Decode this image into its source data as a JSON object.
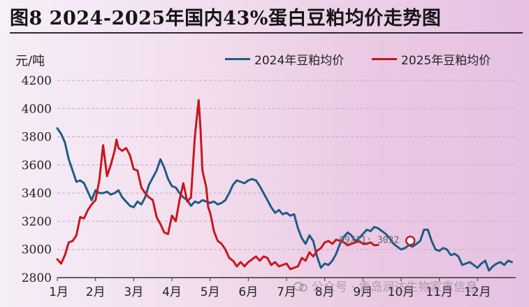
{
  "title": "图8 2024-2025年国内43%蛋白豆粕均价走势图",
  "unit_label": "元/吨",
  "watermark": "公众号 · 青岛润达生物家禽信息",
  "colors": {
    "series_2024": "#1f5b86",
    "series_2025": "#c8161d",
    "grid": "#c9a8c4",
    "axis": "#333333"
  },
  "chart_data": {
    "type": "line",
    "title": "图8 2024-2025年国内43%蛋白豆粕均价走势图",
    "ylabel": "元/吨",
    "xlabel": "",
    "ylim": [
      2800,
      4200
    ],
    "yticks": [
      2800,
      3000,
      3200,
      3400,
      3600,
      3800,
      4000,
      4200
    ],
    "xlim": [
      0,
      12
    ],
    "xticks": [
      "1月",
      "2月",
      "3月",
      "4月",
      "5月",
      "6月",
      "7月",
      "8月",
      "9月",
      "10月",
      "11月",
      "12月"
    ],
    "grid": true,
    "legend_position": "top-right",
    "series": [
      {
        "name": "2024年豆粕均价",
        "color": "#1f5b86",
        "x": [
          0.0,
          0.1,
          0.2,
          0.3,
          0.4,
          0.5,
          0.6,
          0.7,
          0.8,
          0.9,
          1.0,
          1.1,
          1.2,
          1.3,
          1.4,
          1.5,
          1.6,
          1.7,
          1.8,
          1.9,
          2.0,
          2.1,
          2.2,
          2.3,
          2.4,
          2.5,
          2.6,
          2.7,
          2.8,
          2.9,
          3.0,
          3.1,
          3.2,
          3.3,
          3.4,
          3.5,
          3.6,
          3.7,
          3.8,
          3.9,
          4.0,
          4.1,
          4.2,
          4.3,
          4.4,
          4.5,
          4.6,
          4.7,
          4.8,
          4.9,
          5.0,
          5.1,
          5.2,
          5.3,
          5.4,
          5.5,
          5.6,
          5.7,
          5.8,
          5.9,
          6.0,
          6.1,
          6.2,
          6.3,
          6.4,
          6.5,
          6.6,
          6.7,
          6.8,
          6.9,
          7.0,
          7.1,
          7.2,
          7.3,
          7.4,
          7.5,
          7.6,
          7.7,
          7.8,
          7.9,
          8.0,
          8.1,
          8.2,
          8.3,
          8.4,
          8.5,
          8.6,
          8.7,
          8.8,
          8.9,
          9.0,
          9.1,
          9.2,
          9.3,
          9.4,
          9.5,
          9.6,
          9.7,
          9.8,
          9.9,
          10.0,
          10.1,
          10.2,
          10.3,
          10.4,
          10.5,
          10.6,
          10.7,
          10.8,
          10.9,
          11.0,
          11.1,
          11.2,
          11.3,
          11.4,
          11.5,
          11.6,
          11.7,
          11.8,
          11.9
        ],
        "values": [
          3860,
          3820,
          3760,
          3640,
          3560,
          3480,
          3490,
          3470,
          3410,
          3350,
          3420,
          3400,
          3400,
          3410,
          3390,
          3400,
          3420,
          3370,
          3340,
          3310,
          3300,
          3340,
          3320,
          3370,
          3460,
          3510,
          3560,
          3640,
          3580,
          3500,
          3450,
          3440,
          3400,
          3370,
          3350,
          3310,
          3340,
          3330,
          3350,
          3340,
          3330,
          3340,
          3320,
          3330,
          3350,
          3400,
          3460,
          3490,
          3480,
          3470,
          3490,
          3500,
          3490,
          3450,
          3400,
          3350,
          3300,
          3260,
          3280,
          3250,
          3260,
          3240,
          3250,
          3150,
          3080,
          3040,
          3100,
          3060,
          2950,
          2870,
          2900,
          2890,
          2920,
          2970,
          3040,
          3090,
          3120,
          3100,
          3060,
          3080,
          3110,
          3140,
          3130,
          3160,
          3150,
          3130,
          3110,
          3080,
          3040,
          3020,
          3000,
          3010,
          3030,
          3020,
          3040,
          3060,
          3140,
          3140,
          3060,
          3000,
          2990,
          3010,
          3000,
          2960,
          2970,
          2950,
          2890,
          2900,
          2910,
          2890,
          2870,
          2900,
          2920,
          2850,
          2880,
          2900,
          2910,
          2890,
          2920,
          2910
        ]
      },
      {
        "name": "2025年豆粕均价",
        "color": "#c8161d",
        "x": [
          0.0,
          0.1,
          0.2,
          0.3,
          0.4,
          0.5,
          0.6,
          0.7,
          0.8,
          0.9,
          1.0,
          1.1,
          1.2,
          1.3,
          1.4,
          1.5,
          1.55,
          1.6,
          1.7,
          1.8,
          1.9,
          2.0,
          2.1,
          2.2,
          2.3,
          2.4,
          2.5,
          2.6,
          2.7,
          2.8,
          2.9,
          3.0,
          3.1,
          3.2,
          3.3,
          3.4,
          3.5,
          3.6,
          3.7,
          3.75,
          3.8,
          3.9,
          3.95,
          4.0,
          4.05,
          4.1,
          4.2,
          4.3,
          4.4,
          4.5,
          4.6,
          4.7,
          4.8,
          4.9,
          5.0,
          5.1,
          5.2,
          5.3,
          5.4,
          5.5,
          5.6,
          5.7,
          5.8,
          5.9,
          6.0,
          6.1,
          6.2,
          6.3,
          6.4,
          6.5,
          6.6,
          6.7,
          6.8,
          6.9,
          7.0,
          7.1,
          7.2,
          7.3,
          7.4,
          7.5,
          7.6,
          7.7,
          7.8,
          7.9,
          8.0,
          8.1,
          8.2,
          8.3,
          8.4
        ],
        "values": [
          2930,
          2900,
          2960,
          3050,
          3060,
          3100,
          3230,
          3220,
          3280,
          3320,
          3350,
          3490,
          3740,
          3520,
          3600,
          3700,
          3780,
          3720,
          3700,
          3720,
          3670,
          3570,
          3560,
          3440,
          3400,
          3370,
          3350,
          3230,
          3180,
          3120,
          3110,
          3240,
          3200,
          3350,
          3470,
          3340,
          3370,
          3800,
          4060,
          3850,
          3560,
          3440,
          3300,
          3260,
          3200,
          3130,
          3060,
          3040,
          3000,
          2940,
          2920,
          2880,
          2910,
          2880,
          2910,
          2930,
          2950,
          2920,
          2950,
          2940,
          2890,
          2910,
          2880,
          2890,
          2900,
          2860,
          2870,
          2880,
          2940,
          2920,
          2980,
          2950,
          2990,
          3010,
          3050,
          3060,
          3040,
          3070,
          3060,
          3050,
          3030,
          3040,
          3050,
          3060,
          3040,
          3040,
          3050,
          3030,
          3032
        ]
      }
    ],
    "annotation": {
      "label": "09/11: 3032",
      "x": 8.4,
      "y": 3032
    }
  }
}
